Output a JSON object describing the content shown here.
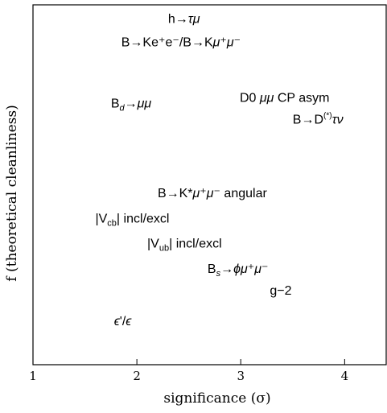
{
  "chart_data": {
    "type": "scatter",
    "xlabel": "significance (σ)",
    "ylabel": "f (theoretical cleanliness)",
    "xlim": [
      1,
      4.4
    ],
    "ylim": [
      0,
      1
    ],
    "xticks": [
      "1",
      "2",
      "3",
      "4"
    ],
    "grid": false,
    "points": [
      {
        "label": "h→τμ",
        "x": 2.3,
        "y": 0.95
      },
      {
        "label": "B→Ke⁺e⁻/B→Kμ⁺μ⁻",
        "x": 1.85,
        "y": 0.885
      },
      {
        "label": "B_d→μμ",
        "x": 1.75,
        "y": 0.715
      },
      {
        "label": "D0 μμ CP asym",
        "x": 2.99,
        "y": 0.73
      },
      {
        "label": "B→D^(*)τν",
        "x": 3.5,
        "y": 0.67
      },
      {
        "label": "B→K*μ⁺μ⁻ angular",
        "x": 2.2,
        "y": 0.465
      },
      {
        "label": "|V_cb| incl/excl",
        "x": 1.6,
        "y": 0.395
      },
      {
        "label": "|V_ub| incl/excl",
        "x": 2.1,
        "y": 0.325
      },
      {
        "label": "B_s→ϕμ⁺μ⁻",
        "x": 2.68,
        "y": 0.255
      },
      {
        "label": "g−2",
        "x": 3.28,
        "y": 0.195
      },
      {
        "label": "ϵ'/ϵ",
        "x": 1.78,
        "y": 0.11
      }
    ]
  }
}
